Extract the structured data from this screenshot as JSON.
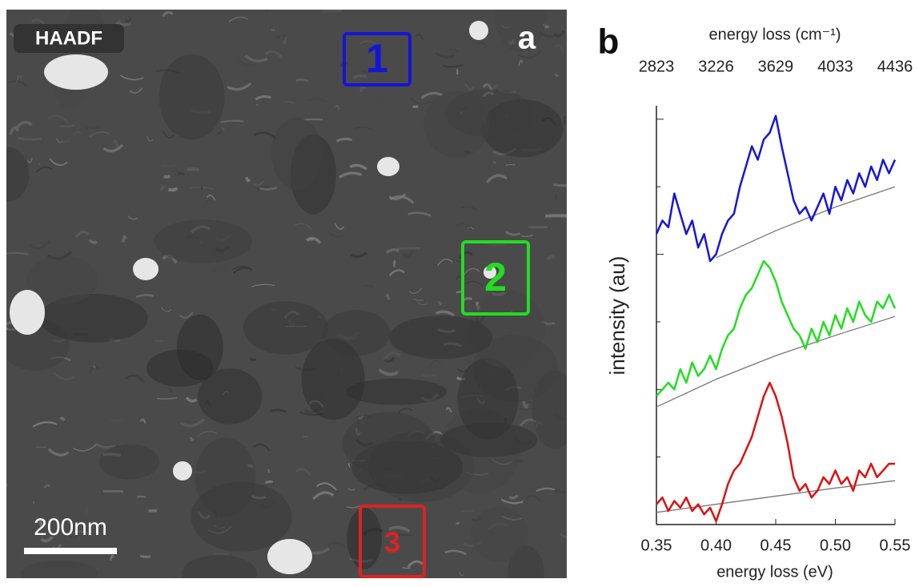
{
  "image_panel": {
    "badge": "HAADF",
    "panel_label": "a",
    "regions": [
      {
        "label": "1",
        "color": "#1515d8"
      },
      {
        "label": "2",
        "color": "#22dd22"
      },
      {
        "label": "3",
        "color": "#dd2222"
      }
    ],
    "scale_bar": "200nm"
  },
  "chart_data": {
    "type": "line",
    "panel_label": "b",
    "x_label": "energy loss (eV)",
    "x2_label": "energy loss (cm⁻¹)",
    "y_label": "intensity (au)",
    "xlim": [
      0.35,
      0.55
    ],
    "xticks": [
      0.35,
      {
        "value": 0.4,
        "label": "0.40"
      },
      0.45,
      {
        "value": 0.5,
        "label": "0.50"
      },
      0.55
    ],
    "x2lim": [
      2823,
      4436
    ],
    "x2ticks": [
      2823,
      3226,
      3629,
      4033,
      4436
    ],
    "ylim": [
      0,
      6.2
    ],
    "yticks": [
      1,
      2,
      3,
      4,
      5,
      6
    ],
    "x": [
      0.35,
      0.355,
      0.36,
      0.365,
      0.37,
      0.375,
      0.38,
      0.385,
      0.39,
      0.395,
      0.4,
      0.405,
      0.41,
      0.415,
      0.42,
      0.425,
      0.43,
      0.435,
      0.44,
      0.445,
      0.45,
      0.455,
      0.46,
      0.465,
      0.47,
      0.475,
      0.48,
      0.485,
      0.49,
      0.495,
      0.5,
      0.505,
      0.51,
      0.515,
      0.52,
      0.525,
      0.53,
      0.535,
      0.54,
      0.545,
      0.55
    ],
    "series": [
      {
        "color": "#1515d8",
        "values": [
          4.3,
          4.5,
          4.4,
          4.9,
          4.6,
          4.3,
          4.5,
          4.1,
          4.3,
          3.9,
          4.0,
          4.3,
          4.5,
          4.6,
          5.0,
          5.3,
          5.6,
          5.4,
          5.7,
          5.8,
          6.05,
          5.6,
          5.2,
          4.8,
          4.6,
          4.7,
          4.5,
          4.7,
          4.9,
          4.6,
          5.0,
          4.8,
          5.1,
          4.9,
          5.2,
          5.0,
          5.3,
          5.1,
          5.4,
          5.2,
          5.4
        ]
      },
      {
        "color": "#22dd22",
        "values": [
          1.9,
          2.0,
          2.1,
          2.0,
          2.3,
          2.1,
          2.4,
          2.2,
          2.3,
          2.5,
          2.3,
          2.6,
          2.8,
          2.9,
          3.2,
          3.4,
          3.5,
          3.7,
          3.9,
          3.8,
          3.6,
          3.3,
          3.1,
          2.9,
          2.8,
          2.6,
          2.9,
          2.7,
          3.0,
          2.8,
          3.1,
          2.9,
          3.2,
          3.0,
          3.3,
          3.1,
          3.0,
          3.3,
          3.2,
          3.4,
          3.2
        ]
      },
      {
        "color": "#dd1111",
        "values": [
          0.3,
          0.4,
          0.2,
          0.35,
          0.25,
          0.4,
          0.2,
          0.3,
          0.15,
          0.25,
          0.05,
          0.3,
          0.6,
          0.8,
          0.9,
          1.1,
          1.3,
          1.6,
          1.9,
          2.1,
          1.9,
          1.6,
          1.2,
          0.7,
          0.5,
          0.6,
          0.4,
          0.5,
          0.7,
          0.6,
          0.8,
          0.6,
          0.7,
          0.5,
          0.8,
          0.7,
          0.9,
          0.7,
          0.8,
          0.9,
          0.9
        ]
      }
    ],
    "baselines": [
      {
        "color": "#777777",
        "x": [
          0.4,
          0.45,
          0.5,
          0.55
        ],
        "values": [
          3.95,
          4.35,
          4.7,
          5.0
        ]
      },
      {
        "color": "#777777",
        "x": [
          0.35,
          0.4,
          0.45,
          0.5,
          0.55
        ],
        "values": [
          1.74,
          2.15,
          2.5,
          2.8,
          3.08
        ]
      },
      {
        "color": "#777777",
        "x": [
          0.35,
          0.4,
          0.45,
          0.5,
          0.55
        ],
        "values": [
          0.18,
          0.3,
          0.42,
          0.54,
          0.65
        ]
      }
    ]
  }
}
